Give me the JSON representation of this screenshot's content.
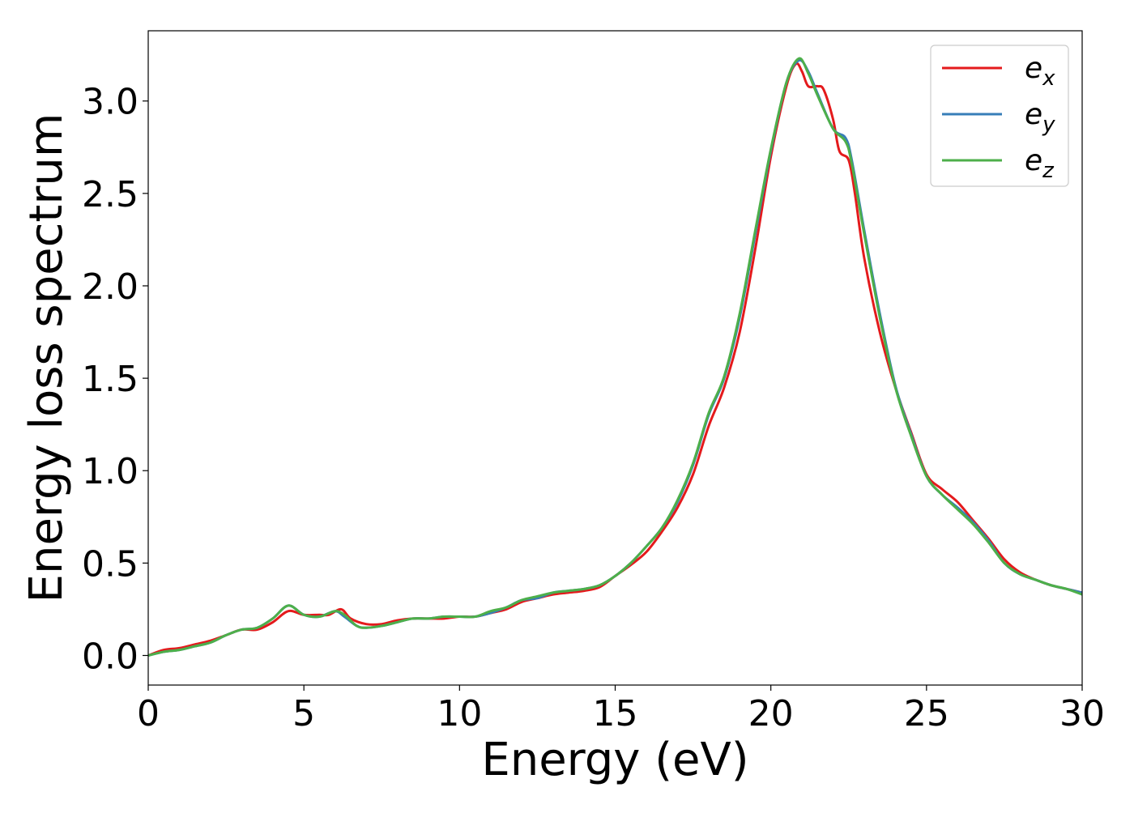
{
  "chart_data": {
    "type": "line",
    "title": "",
    "xlabel": "Energy (eV)",
    "ylabel": "Energy loss spectrum",
    "xlim": [
      0,
      30
    ],
    "ylim": [
      -0.16,
      3.38
    ],
    "xticks": [
      0,
      5,
      10,
      15,
      20,
      25,
      30
    ],
    "xtick_labels": [
      "0",
      "5",
      "10",
      "15",
      "20",
      "25",
      "30"
    ],
    "yticks": [
      0.0,
      0.5,
      1.0,
      1.5,
      2.0,
      2.5,
      3.0
    ],
    "ytick_labels": [
      "0.0",
      "0.5",
      "1.0",
      "1.5",
      "2.0",
      "2.5",
      "3.0"
    ],
    "grid": false,
    "legend_position": "top-right",
    "series": [
      {
        "name": "e",
        "subscript": "x",
        "color": "#e41a1c",
        "x": [
          0,
          0.5,
          1.0,
          1.5,
          2.0,
          2.5,
          3.0,
          3.5,
          4.0,
          4.5,
          5.0,
          5.5,
          5.8,
          6.2,
          6.5,
          7.0,
          7.5,
          8.0,
          8.5,
          9.0,
          9.5,
          10.0,
          10.5,
          11.0,
          11.5,
          12.0,
          12.5,
          13.0,
          13.5,
          14.0,
          14.5,
          15.0,
          15.5,
          16.0,
          16.5,
          17.0,
          17.5,
          18.0,
          18.5,
          19.0,
          19.5,
          20.0,
          20.5,
          20.8,
          21.0,
          21.2,
          21.5,
          21.7,
          22.0,
          22.2,
          22.5,
          22.7,
          23.0,
          23.5,
          24.0,
          24.5,
          25.0,
          25.5,
          26.0,
          26.5,
          27.0,
          27.5,
          28.0,
          28.5,
          29.0,
          29.5,
          30.0
        ],
        "y": [
          0.0,
          0.03,
          0.04,
          0.06,
          0.08,
          0.11,
          0.14,
          0.14,
          0.18,
          0.24,
          0.22,
          0.22,
          0.22,
          0.25,
          0.2,
          0.17,
          0.17,
          0.19,
          0.2,
          0.2,
          0.2,
          0.21,
          0.21,
          0.23,
          0.25,
          0.29,
          0.31,
          0.33,
          0.34,
          0.35,
          0.37,
          0.43,
          0.49,
          0.56,
          0.67,
          0.8,
          0.98,
          1.24,
          1.45,
          1.75,
          2.2,
          2.7,
          3.08,
          3.2,
          3.16,
          3.08,
          3.08,
          3.06,
          2.9,
          2.73,
          2.68,
          2.5,
          2.15,
          1.75,
          1.45,
          1.21,
          0.98,
          0.9,
          0.83,
          0.73,
          0.63,
          0.52,
          0.45,
          0.41,
          0.38,
          0.36,
          0.34
        ]
      },
      {
        "name": "e",
        "subscript": "y",
        "color": "#377eb8",
        "x": [
          0,
          0.5,
          1.0,
          1.5,
          2.0,
          2.5,
          3.0,
          3.5,
          4.0,
          4.5,
          5.0,
          5.5,
          6.0,
          6.3,
          6.7,
          7.0,
          7.5,
          8.0,
          8.5,
          9.0,
          9.5,
          10.0,
          10.5,
          11.0,
          11.5,
          12.0,
          12.5,
          13.0,
          13.5,
          14.0,
          14.5,
          15.0,
          15.5,
          16.0,
          16.5,
          17.0,
          17.5,
          18.0,
          18.5,
          19.0,
          19.5,
          20.0,
          20.5,
          20.9,
          21.2,
          21.5,
          22.0,
          22.4,
          22.6,
          23.0,
          23.5,
          24.0,
          24.5,
          25.0,
          25.5,
          26.0,
          26.5,
          27.0,
          27.5,
          28.0,
          28.5,
          29.0,
          29.5,
          30.0
        ],
        "y": [
          0.0,
          0.02,
          0.03,
          0.05,
          0.07,
          0.11,
          0.14,
          0.15,
          0.2,
          0.27,
          0.22,
          0.21,
          0.24,
          0.21,
          0.16,
          0.15,
          0.16,
          0.18,
          0.2,
          0.2,
          0.21,
          0.21,
          0.21,
          0.23,
          0.26,
          0.3,
          0.31,
          0.34,
          0.35,
          0.36,
          0.38,
          0.43,
          0.5,
          0.59,
          0.69,
          0.83,
          1.03,
          1.3,
          1.5,
          1.83,
          2.28,
          2.73,
          3.1,
          3.22,
          3.16,
          3.04,
          2.85,
          2.8,
          2.68,
          2.3,
          1.85,
          1.46,
          1.2,
          0.97,
          0.87,
          0.8,
          0.72,
          0.62,
          0.5,
          0.44,
          0.41,
          0.38,
          0.36,
          0.34
        ]
      },
      {
        "name": "e",
        "subscript": "z",
        "color": "#4daf4a",
        "x": [
          0,
          0.5,
          1.0,
          1.5,
          2.0,
          2.5,
          3.0,
          3.5,
          4.0,
          4.5,
          5.0,
          5.5,
          6.0,
          6.3,
          6.7,
          7.0,
          7.5,
          8.0,
          8.5,
          9.0,
          9.5,
          10.0,
          10.5,
          11.0,
          11.5,
          12.0,
          12.5,
          13.0,
          13.5,
          14.0,
          14.5,
          15.0,
          15.5,
          16.0,
          16.5,
          17.0,
          17.5,
          18.0,
          18.5,
          19.0,
          19.5,
          20.0,
          20.5,
          20.9,
          21.2,
          21.5,
          22.0,
          22.4,
          22.6,
          23.0,
          23.5,
          24.0,
          24.5,
          25.0,
          25.5,
          26.0,
          26.5,
          27.0,
          27.5,
          28.0,
          28.5,
          29.0,
          29.5,
          30.0
        ],
        "y": [
          0.0,
          0.02,
          0.03,
          0.05,
          0.07,
          0.11,
          0.14,
          0.15,
          0.2,
          0.27,
          0.22,
          0.21,
          0.24,
          0.22,
          0.16,
          0.15,
          0.16,
          0.18,
          0.2,
          0.2,
          0.21,
          0.21,
          0.21,
          0.24,
          0.26,
          0.3,
          0.32,
          0.34,
          0.35,
          0.36,
          0.38,
          0.43,
          0.5,
          0.59,
          0.69,
          0.84,
          1.04,
          1.31,
          1.51,
          1.85,
          2.3,
          2.74,
          3.1,
          3.23,
          3.15,
          3.03,
          2.85,
          2.78,
          2.66,
          2.28,
          1.83,
          1.45,
          1.19,
          0.97,
          0.87,
          0.79,
          0.71,
          0.61,
          0.5,
          0.44,
          0.41,
          0.38,
          0.36,
          0.33
        ]
      }
    ]
  }
}
